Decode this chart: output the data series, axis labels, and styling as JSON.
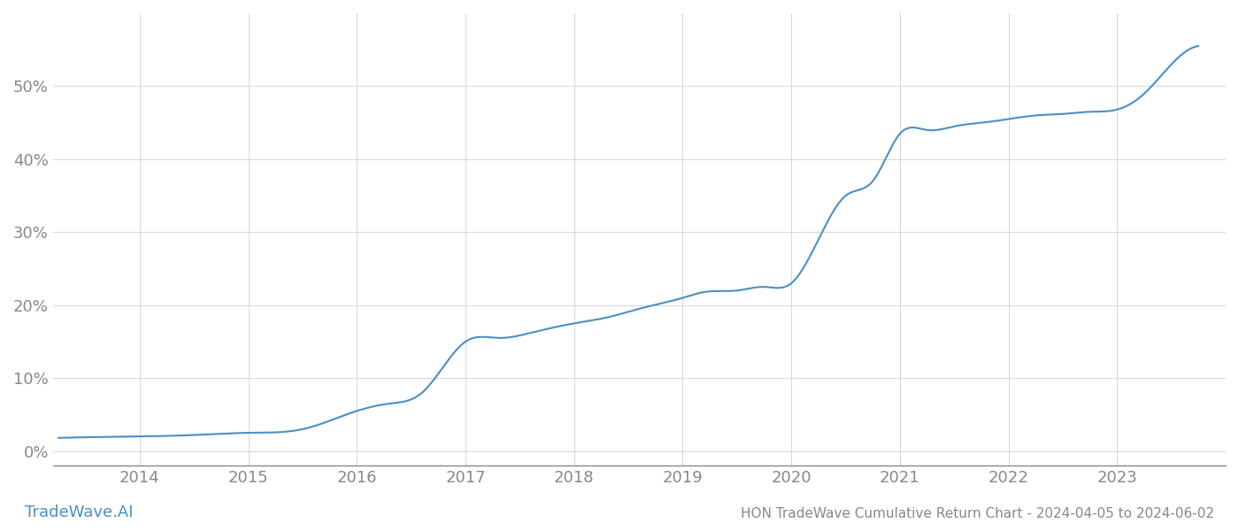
{
  "title": "HON TradeWave Cumulative Return Chart - 2024-04-05 to 2024-06-02",
  "watermark": "TradeWave.AI",
  "line_color": "#4a90c4",
  "background_color": "#ffffff",
  "grid_color": "#cccccc",
  "x_years": [
    2014,
    2015,
    2016,
    2017,
    2018,
    2019,
    2020,
    2021,
    2022,
    2023
  ],
  "key_x": [
    2013.25,
    2014.0,
    2014.5,
    2015.0,
    2015.5,
    2016.0,
    2016.3,
    2016.6,
    2017.0,
    2017.3,
    2017.6,
    2018.0,
    2018.3,
    2018.6,
    2019.0,
    2019.2,
    2019.5,
    2019.75,
    2020.0,
    2020.25,
    2020.5,
    2020.75,
    2021.0,
    2021.25,
    2021.5,
    2021.75,
    2022.0,
    2022.25,
    2022.5,
    2022.75,
    2023.0,
    2023.25,
    2023.5,
    2023.75
  ],
  "key_y": [
    0.018,
    0.02,
    0.022,
    0.025,
    0.03,
    0.055,
    0.065,
    0.08,
    0.15,
    0.155,
    0.162,
    0.175,
    0.183,
    0.195,
    0.21,
    0.218,
    0.22,
    0.225,
    0.23,
    0.29,
    0.35,
    0.37,
    0.435,
    0.44,
    0.445,
    0.45,
    0.455,
    0.46,
    0.462,
    0.465,
    0.468,
    0.49,
    0.53,
    0.555
  ],
  "ytick_values": [
    0.0,
    0.1,
    0.2,
    0.3,
    0.4,
    0.5
  ],
  "ytick_labels": [
    "0%",
    "10%",
    "20%",
    "30%",
    "40%",
    "50%"
  ],
  "xlim": [
    2013.2,
    2024.0
  ],
  "ylim": [
    -0.02,
    0.6
  ],
  "tick_color": "#888888",
  "spine_color": "#888888",
  "title_fontsize": 11,
  "watermark_fontsize": 13,
  "tick_fontsize": 13
}
